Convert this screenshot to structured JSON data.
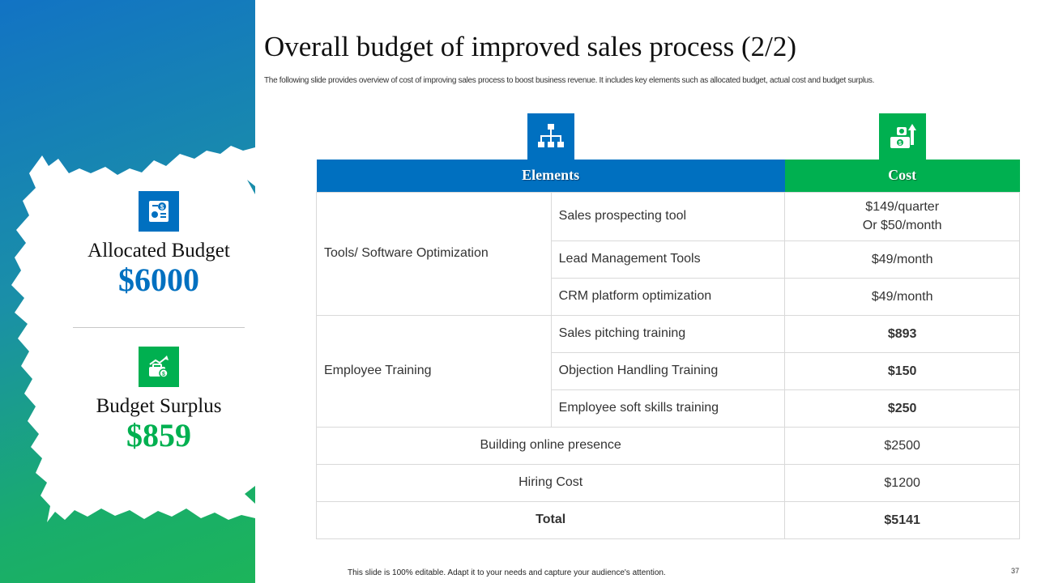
{
  "slide": {
    "title": "Overall budget of improved sales process (2/2)",
    "subtitle": "The following slide provides overview of cost of improving sales process to boost business revenue. It includes key elements such as allocated budget, actual cost and budget surplus.",
    "footer": "This slide is 100% editable. Adapt it to your needs and capture your audience's attention.",
    "page_number": "37"
  },
  "colors": {
    "blue": "#0070c0",
    "green": "#00b050"
  },
  "summary": {
    "allocated": {
      "label": "Allocated Budget",
      "value": "$6000",
      "icon": "budget-document-icon"
    },
    "surplus": {
      "label": "Budget Surplus",
      "value": "$859",
      "icon": "money-growth-icon"
    }
  },
  "table": {
    "headers": {
      "elements": "Elements",
      "cost": "Cost"
    },
    "groups": [
      {
        "category": "Tools/ Software Optimization",
        "items": [
          {
            "name": "Sales prospecting tool",
            "cost_line1": "$149/quarter",
            "cost_line2": "Or $50/month"
          },
          {
            "name": "Lead Management Tools",
            "cost": "$49/month"
          },
          {
            "name": "CRM platform optimization",
            "cost": "$49/month"
          }
        ]
      },
      {
        "category": "Employee Training",
        "items": [
          {
            "name": "Sales pitching training",
            "cost": "$893"
          },
          {
            "name": "Objection Handling Training",
            "cost": "$150"
          },
          {
            "name": "Employee soft skills training",
            "cost": "$250"
          }
        ]
      }
    ],
    "rows": [
      {
        "name": "Building online presence",
        "cost": "$2500"
      },
      {
        "name": "Hiring Cost",
        "cost": "$1200"
      }
    ],
    "total": {
      "label": "Total",
      "value": "$5141"
    }
  }
}
